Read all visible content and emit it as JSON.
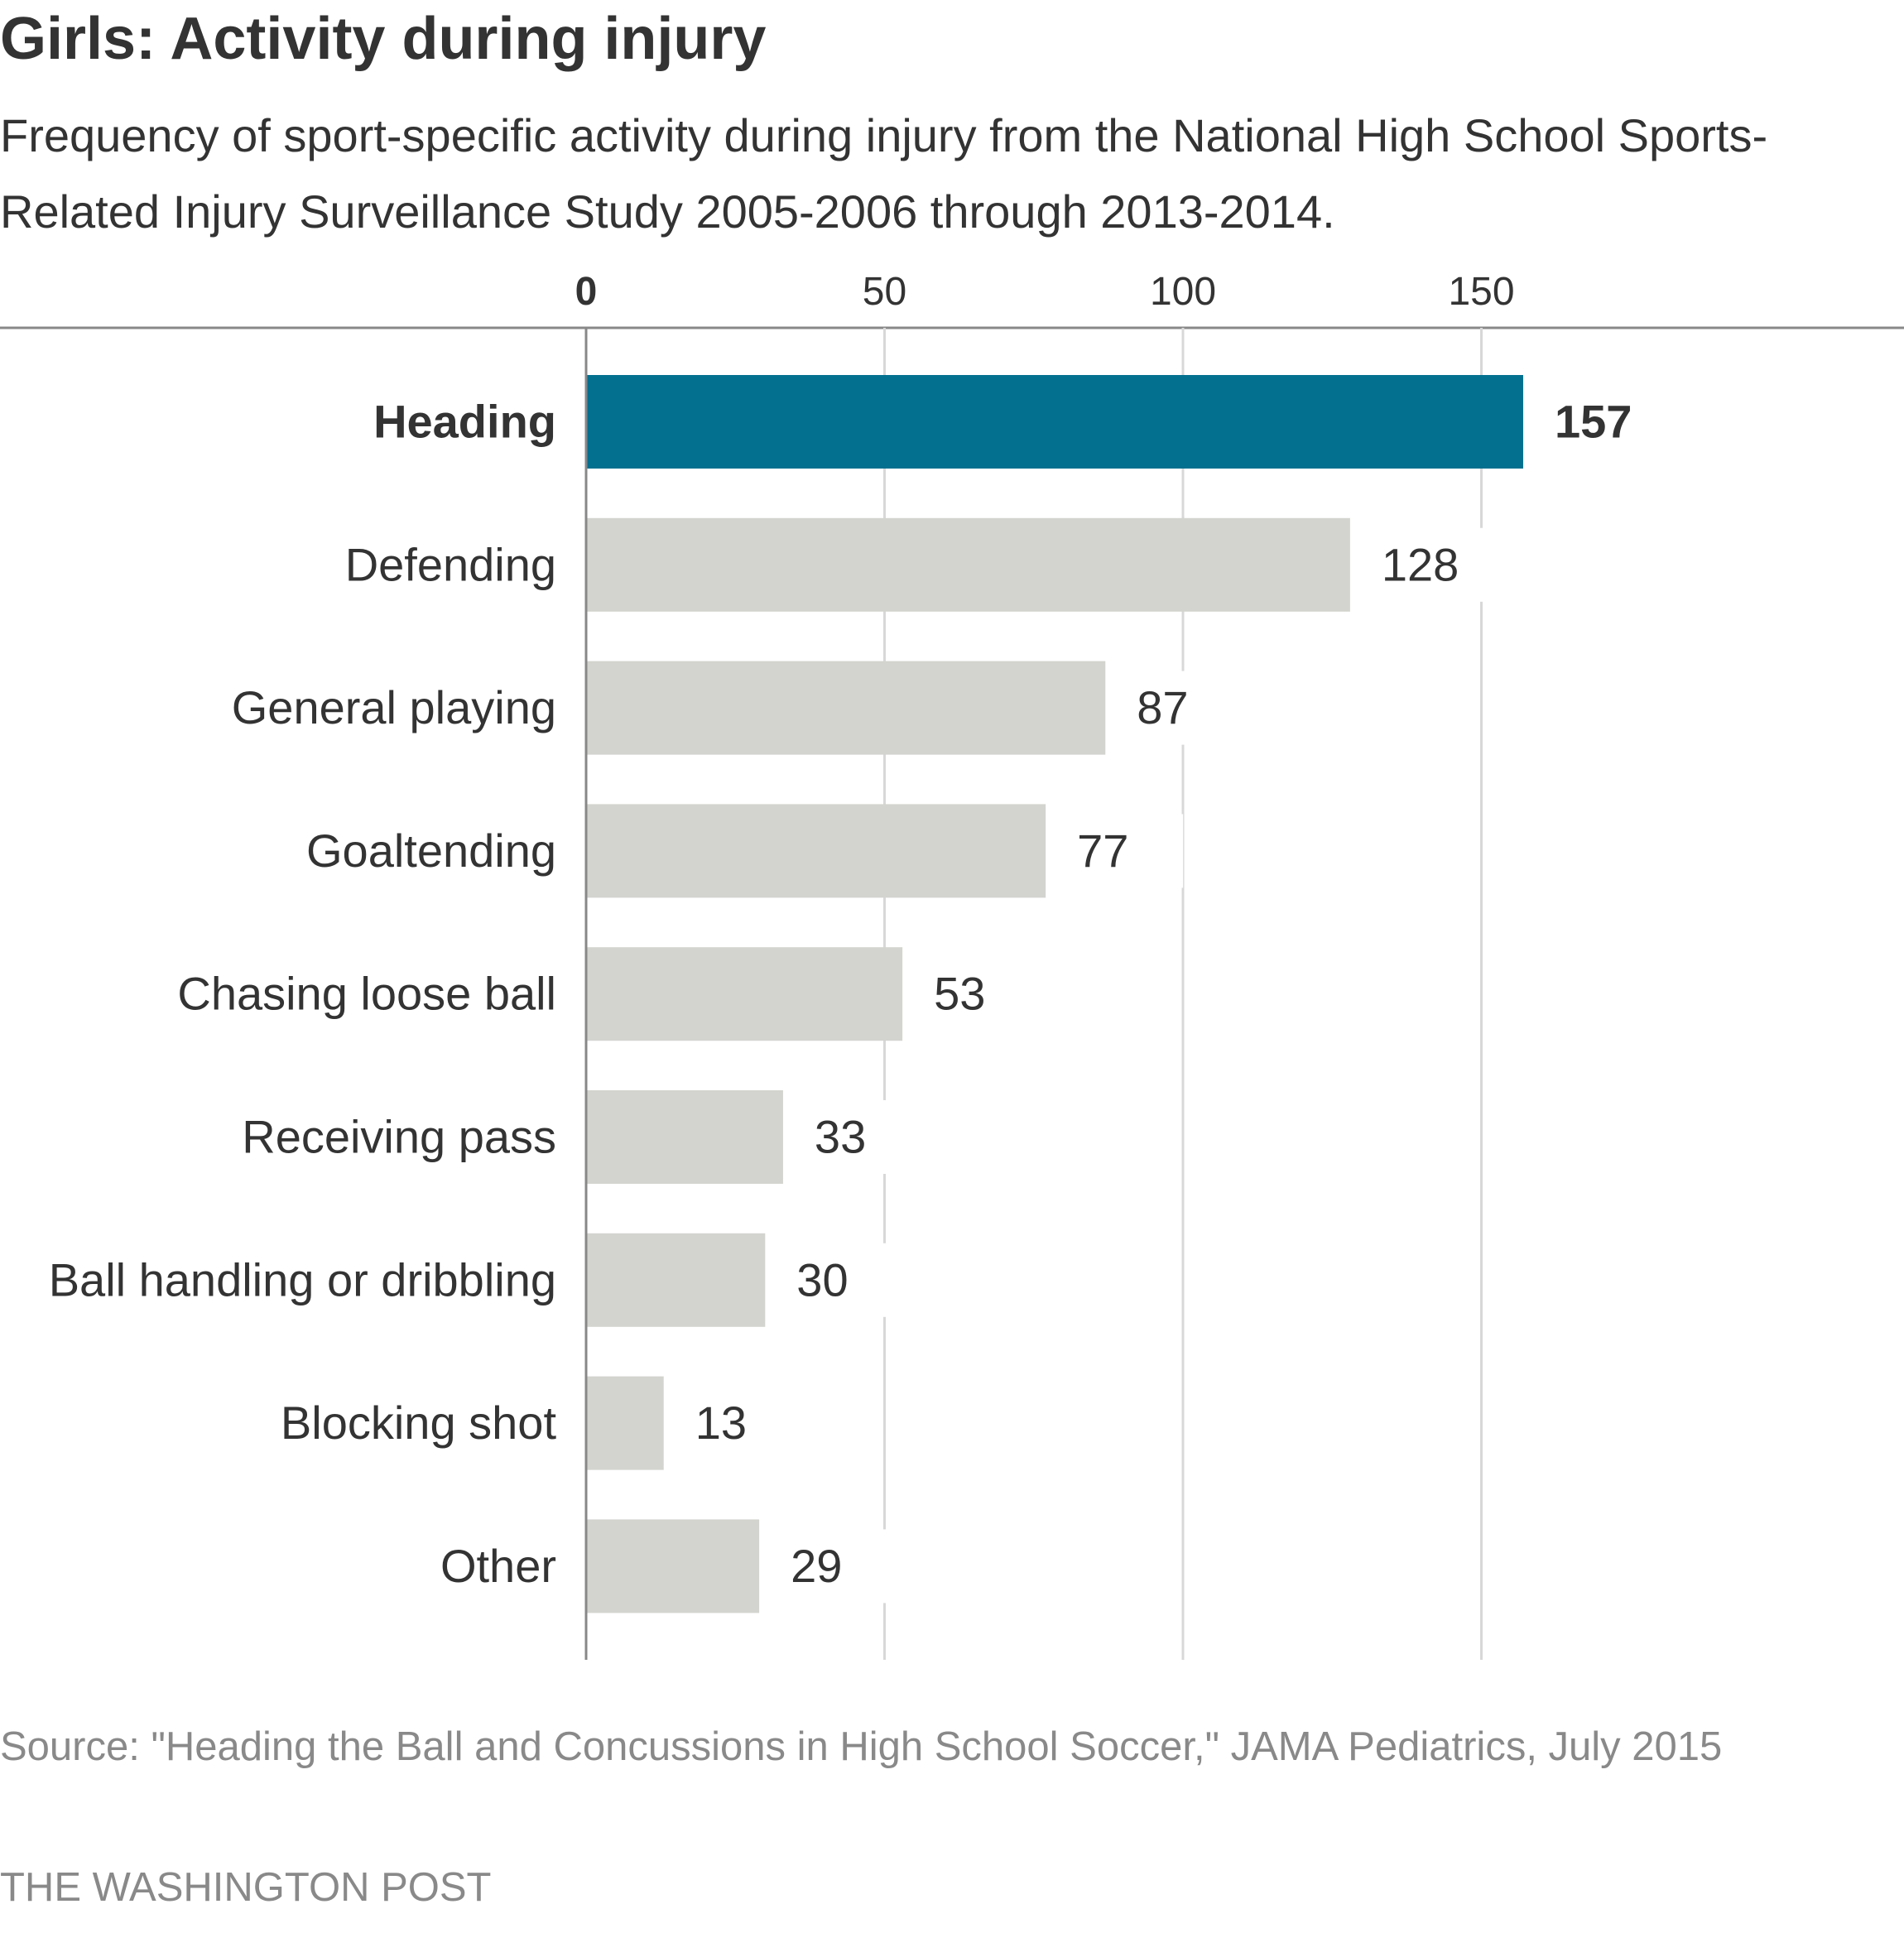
{
  "chart_data": {
    "type": "bar",
    "orientation": "horizontal",
    "title": "Girls: Activity during injury",
    "subtitle": "Frequency of sport-specific activity during injury from the National High School Sports-Related Injury Surveillance Study 2005-2006 through 2013-2014.",
    "categories": [
      "Heading",
      "Defending",
      "General playing",
      "Goaltending",
      "Chasing loose ball",
      "Receiving pass",
      "Ball handling or dribbling",
      "Blocking shot",
      "Other"
    ],
    "values": [
      157,
      128,
      87,
      77,
      53,
      33,
      30,
      13,
      29
    ],
    "highlight": "Heading",
    "xlim": [
      0,
      160
    ],
    "ticks": [
      0,
      50,
      100,
      150
    ],
    "tick_labels": [
      "0",
      "50",
      "100",
      "150"
    ],
    "grid": true,
    "colors": {
      "highlight": "#03708f",
      "bar": "#d3d3cf",
      "text": "#333333",
      "grid": "#d8d8d8",
      "axis": "#888888",
      "muted": "#898989"
    }
  },
  "source": "Source: \"Heading the Ball and Concussions in High School Soccer,\" JAMA Pediatrics, July 2015",
  "credit": "THE WASHINGTON POST"
}
